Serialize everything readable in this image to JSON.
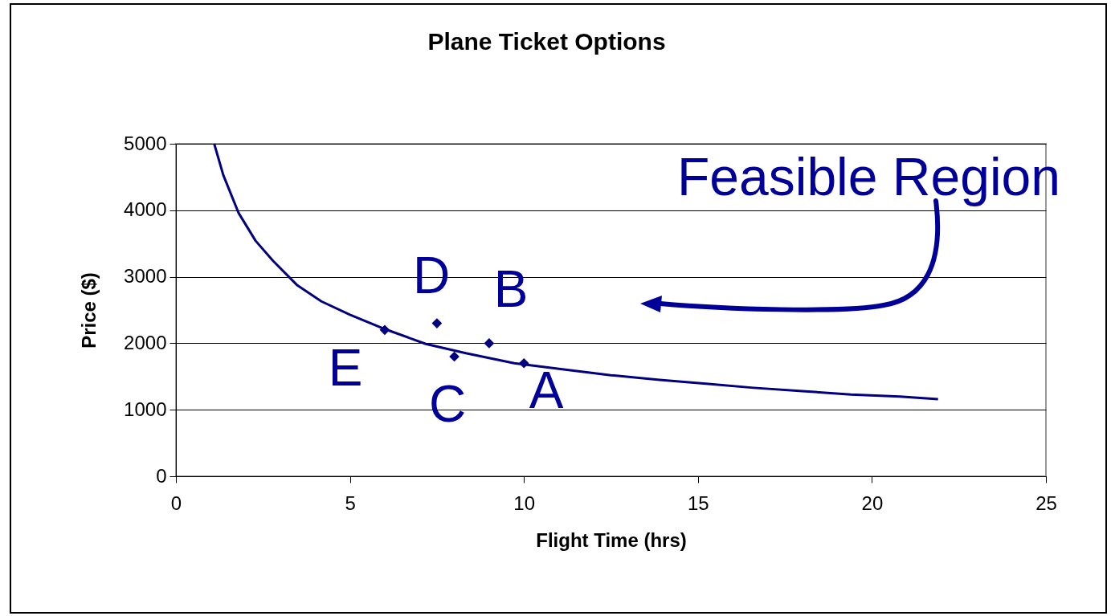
{
  "chart_data": {
    "type": "scatter",
    "title": "Plane Ticket Options",
    "xlabel": "Flight Time (hrs)",
    "ylabel": "Price ($)",
    "xlim": [
      0,
      25
    ],
    "xticks": [
      0,
      5,
      10,
      15,
      20,
      25
    ],
    "ylim": [
      0,
      5000
    ],
    "yticks": [
      0,
      1000,
      2000,
      3000,
      4000,
      5000
    ],
    "grid": "y",
    "series": [
      {
        "type": "line",
        "color": "#000080",
        "line_style": "solid",
        "x": [
          1.1,
          1.36,
          1.8,
          2.29,
          2.79,
          3.49,
          4.18,
          5.0,
          6.02,
          7.18,
          8.33,
          9.72,
          11.1,
          12.5,
          13.9,
          15.3,
          16.6,
          18.0,
          19.4,
          20.8,
          21.9
        ],
        "values": [
          5000,
          4530,
          3960,
          3540,
          3240,
          2870,
          2630,
          2430,
          2210,
          1990,
          1850,
          1700,
          1610,
          1520,
          1450,
          1390,
          1330,
          1280,
          1230,
          1200,
          1160
        ]
      },
      {
        "color": "#000080",
        "marker": "diamond",
        "x": [
          6,
          7.5,
          8,
          9,
          10
        ],
        "values": [
          2200,
          2300,
          1800,
          2000,
          1700
        ]
      }
    ],
    "annotations": [
      "E",
      "D",
      "C",
      "B",
      "A",
      "Feasible Region"
    ]
  }
}
